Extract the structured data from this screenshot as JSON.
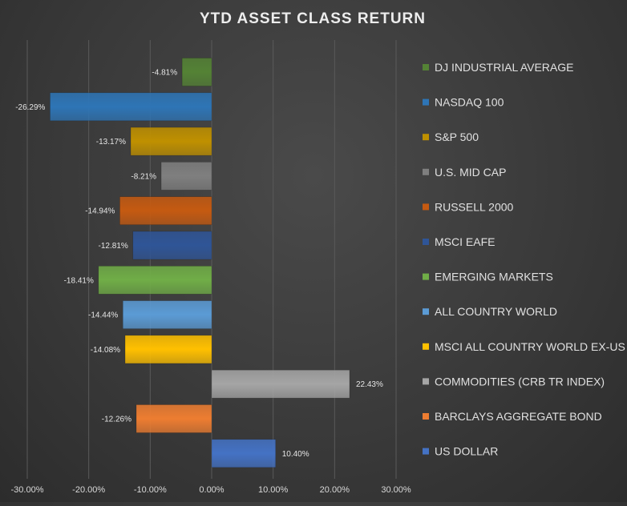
{
  "chart_data": {
    "type": "bar",
    "orientation": "horizontal",
    "title": "YTD ASSET CLASS RETURN",
    "categories": [
      "DJ INDUSTRIAL AVERAGE",
      "NASDAQ 100",
      "S&P 500",
      "U.S. MID CAP",
      "RUSSELL 2000",
      "MSCI EAFE",
      "EMERGING MARKETS",
      "ALL COUNTRY WORLD",
      "MSCI ALL COUNTRY WORLD EX-US",
      "COMMODITIES (CRB TR INDEX)",
      "BARCLAYS AGGREGATE BOND",
      "US DOLLAR"
    ],
    "values": [
      -4.81,
      -26.29,
      -13.17,
      -8.21,
      -14.94,
      -12.81,
      -18.41,
      -14.44,
      -14.08,
      22.43,
      -12.26,
      10.4
    ],
    "value_labels": [
      "-4.81%",
      "-26.29%",
      "-13.17%",
      "-8.21%",
      "-14.94%",
      "-12.81%",
      "-18.41%",
      "-14.44%",
      "-14.08%",
      "22.43%",
      "-12.26%",
      "10.40%"
    ],
    "colors": [
      "#548235",
      "#2e75b6",
      "#bf9000",
      "#7f7f7f",
      "#c55a11",
      "#2f5597",
      "#70ad47",
      "#5b9bd5",
      "#ffc000",
      "#a5a5a5",
      "#ed7d31",
      "#4472c4"
    ],
    "xlim": [
      -30,
      30
    ],
    "xticks": [
      -30,
      -20,
      -10,
      0,
      10,
      20,
      30
    ],
    "xtick_labels": [
      "-30.00%",
      "-20.00%",
      "-10.00%",
      "0.00%",
      "10.00%",
      "20.00%",
      "30.00%"
    ],
    "grid": true,
    "legend_position": "right"
  }
}
